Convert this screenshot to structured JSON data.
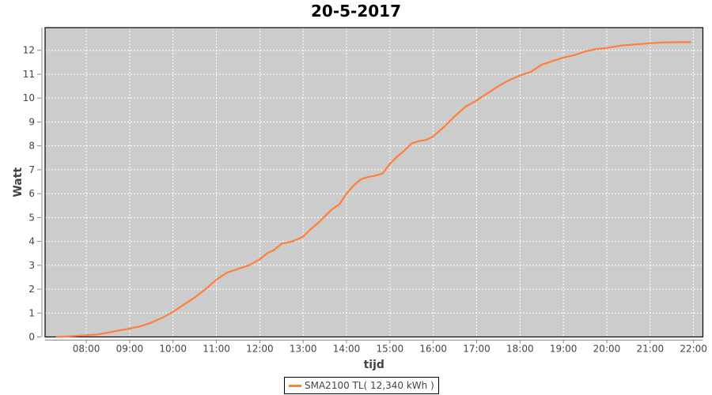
{
  "chart_data": {
    "type": "line",
    "title": "20-5-2017",
    "xlabel": "tijd",
    "ylabel": "Watt",
    "xlim": [
      "07:03",
      "22:13"
    ],
    "ylim": [
      0,
      12.95
    ],
    "xticks": [
      "08:00",
      "09:00",
      "10:00",
      "11:00",
      "12:00",
      "13:00",
      "14:00",
      "15:00",
      "16:00",
      "17:00",
      "18:00",
      "19:00",
      "20:00",
      "21:00",
      "22:00"
    ],
    "yticks": [
      0,
      1,
      2,
      3,
      4,
      5,
      6,
      7,
      8,
      9,
      10,
      11,
      12
    ],
    "grid": true,
    "legend_position": "bottom",
    "plot_background": "#cccccc",
    "series": [
      {
        "name": "SMA2100 TL( 12,340 kWh )",
        "color": "#ff7f3a",
        "x": [
          "07:19",
          "07:40",
          "08:00",
          "08:15",
          "08:30",
          "08:45",
          "09:00",
          "09:15",
          "09:30",
          "09:45",
          "10:00",
          "10:15",
          "10:30",
          "10:45",
          "11:00",
          "11:15",
          "11:30",
          "11:45",
          "12:00",
          "12:10",
          "12:20",
          "12:30",
          "12:45",
          "13:00",
          "13:10",
          "13:20",
          "13:30",
          "13:40",
          "13:50",
          "14:00",
          "14:10",
          "14:20",
          "14:30",
          "14:40",
          "14:50",
          "15:00",
          "15:10",
          "15:20",
          "15:30",
          "15:40",
          "15:50",
          "16:00",
          "16:15",
          "16:30",
          "16:45",
          "17:00",
          "17:15",
          "17:30",
          "17:45",
          "18:00",
          "18:15",
          "18:30",
          "18:45",
          "19:00",
          "19:15",
          "19:30",
          "19:45",
          "20:00",
          "20:20",
          "20:40",
          "21:00",
          "21:20",
          "21:40",
          "21:56"
        ],
        "y": [
          0,
          0.03,
          0.07,
          0.1,
          0.18,
          0.27,
          0.35,
          0.45,
          0.6,
          0.8,
          1.05,
          1.35,
          1.65,
          2.0,
          2.4,
          2.7,
          2.85,
          3.0,
          3.25,
          3.5,
          3.65,
          3.9,
          4.0,
          4.2,
          4.5,
          4.75,
          5.05,
          5.35,
          5.55,
          6.0,
          6.35,
          6.6,
          6.7,
          6.75,
          6.85,
          7.25,
          7.55,
          7.8,
          8.1,
          8.2,
          8.25,
          8.4,
          8.8,
          9.25,
          9.65,
          9.9,
          10.2,
          10.5,
          10.75,
          10.95,
          11.1,
          11.4,
          11.55,
          11.7,
          11.8,
          11.95,
          12.05,
          12.1,
          12.2,
          12.25,
          12.3,
          12.33,
          12.34,
          12.34
        ]
      }
    ]
  }
}
